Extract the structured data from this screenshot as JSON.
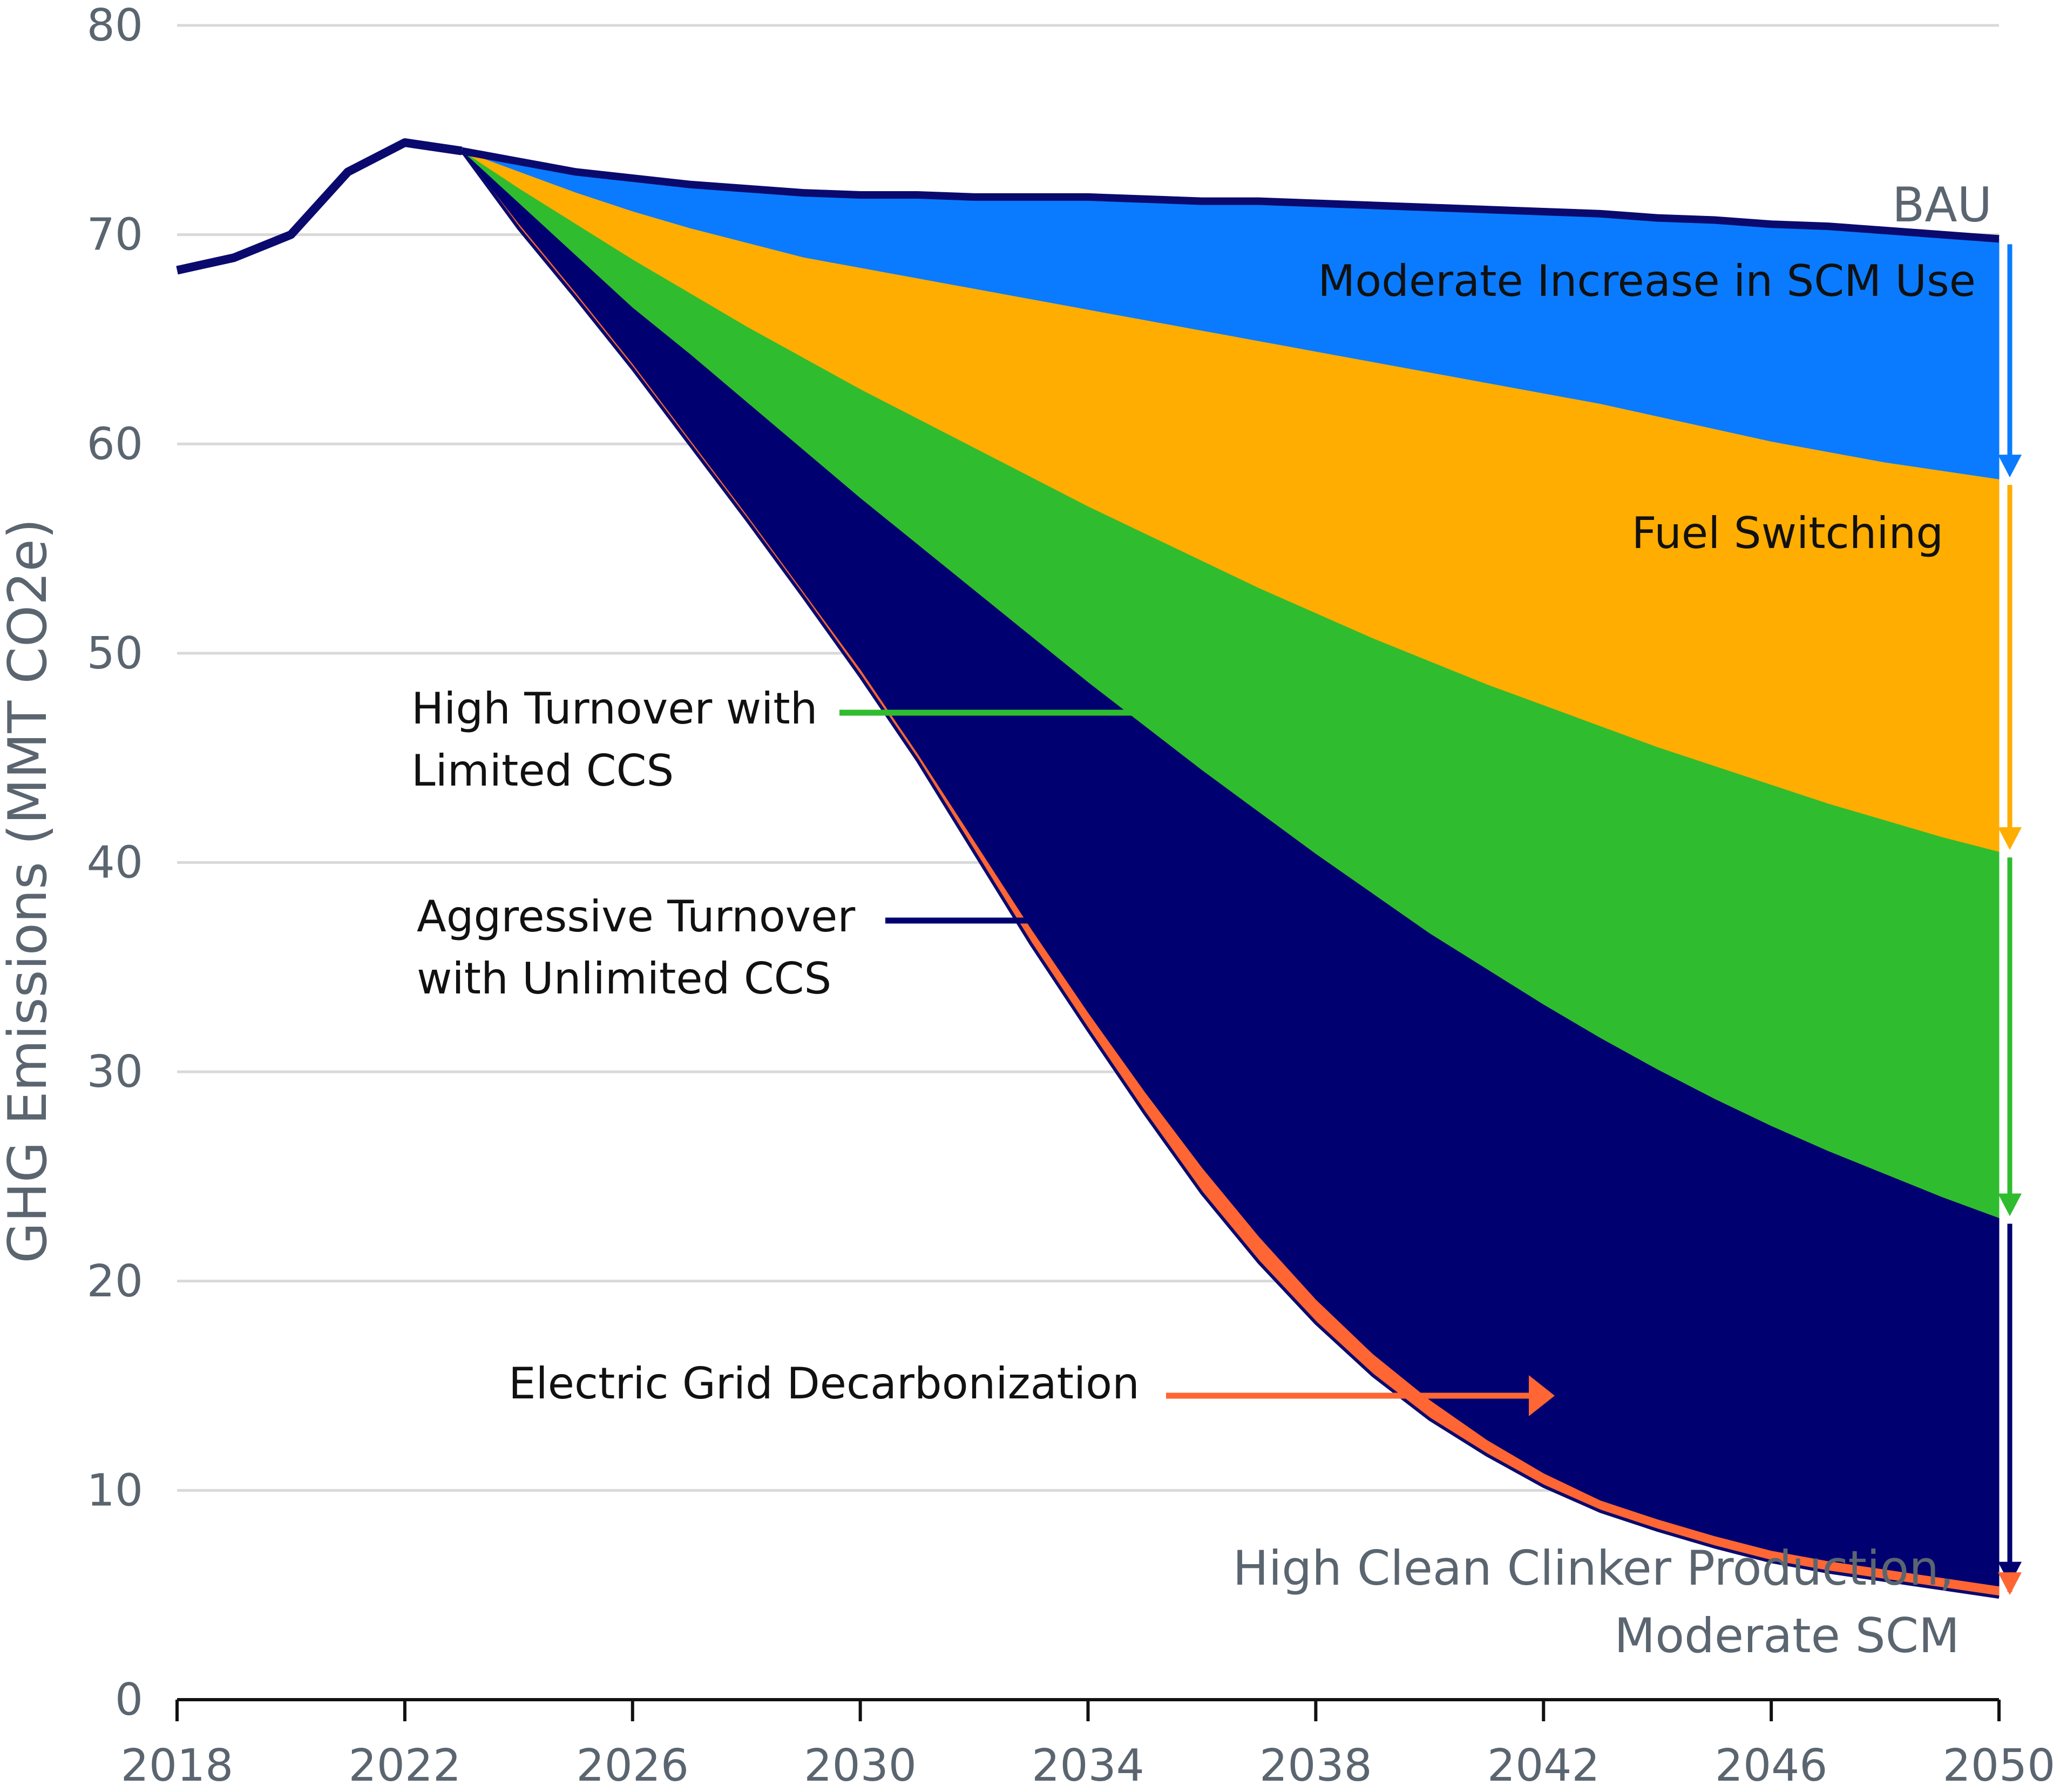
{
  "chart_data": {
    "type": "area",
    "ylabel": "GHG Emissions (MMT CO2e)",
    "xlabel": "",
    "xlim": [
      2018,
      2050
    ],
    "ylim": [
      0,
      80
    ],
    "xticks": [
      2018,
      2022,
      2026,
      2030,
      2034,
      2038,
      2042,
      2046,
      2050
    ],
    "yticks": [
      0,
      10,
      20,
      30,
      40,
      50,
      60,
      70,
      80
    ],
    "grid": "horizontal",
    "historical": {
      "x": [
        2018,
        2019,
        2020,
        2021,
        2022,
        2023
      ],
      "y": [
        68.3,
        68.9,
        70.0,
        73.0,
        74.4,
        74.0
      ]
    },
    "x": [
      2023,
      2024,
      2025,
      2026,
      2027,
      2028,
      2029,
      2030,
      2031,
      2032,
      2033,
      2034,
      2035,
      2036,
      2037,
      2038,
      2039,
      2040,
      2041,
      2042,
      2043,
      2044,
      2045,
      2046,
      2047,
      2048,
      2049,
      2050
    ],
    "series": [
      {
        "name": "BAU",
        "color": "#0a0a6e",
        "values": [
          74.0,
          73.5,
          73.0,
          72.7,
          72.4,
          72.2,
          72.0,
          71.9,
          71.9,
          71.8,
          71.8,
          71.8,
          71.7,
          71.6,
          71.6,
          71.5,
          71.4,
          71.3,
          71.2,
          71.1,
          71.0,
          70.8,
          70.7,
          70.5,
          70.4,
          70.2,
          70.0,
          69.8
        ]
      },
      {
        "name": "Moderate Increase in SCM Use",
        "color": "#0a7bff",
        "values": [
          74.0,
          73.0,
          72.0,
          71.1,
          70.3,
          69.6,
          68.9,
          68.4,
          67.9,
          67.4,
          66.9,
          66.4,
          65.9,
          65.4,
          64.9,
          64.4,
          63.9,
          63.4,
          62.9,
          62.4,
          61.9,
          61.3,
          60.7,
          60.1,
          59.6,
          59.1,
          58.7,
          58.3
        ]
      },
      {
        "name": "Fuel Switching",
        "color": "#ffad00",
        "values": [
          74.0,
          72.2,
          70.5,
          68.8,
          67.2,
          65.6,
          64.1,
          62.6,
          61.2,
          59.8,
          58.4,
          57.0,
          55.7,
          54.4,
          53.1,
          51.9,
          50.7,
          49.6,
          48.5,
          47.5,
          46.5,
          45.5,
          44.6,
          43.7,
          42.8,
          42.0,
          41.2,
          40.5
        ]
      },
      {
        "name": "High Turnover with Limited CCS",
        "color": "#30bc2f",
        "values": [
          74.0,
          71.5,
          69.0,
          66.5,
          64.3,
          62.0,
          59.7,
          57.4,
          55.2,
          53.0,
          50.8,
          48.6,
          46.5,
          44.4,
          42.4,
          40.4,
          38.5,
          36.6,
          34.9,
          33.2,
          31.6,
          30.1,
          28.7,
          27.4,
          26.2,
          25.1,
          24.0,
          23.0
        ]
      },
      {
        "name": "Aggressive Turnover with Unlimited CCS",
        "color": "#000070",
        "values": [
          74.0,
          70.5,
          67.2,
          63.8,
          60.2,
          56.6,
          52.9,
          49.2,
          45.2,
          41.0,
          36.8,
          32.8,
          29.0,
          25.4,
          22.1,
          19.1,
          16.5,
          14.3,
          12.4,
          10.8,
          9.5,
          8.6,
          7.8,
          7.1,
          6.6,
          6.2,
          5.8,
          5.4
        ]
      },
      {
        "name": "Electric Grid Decarbonization",
        "color": "#ff6633",
        "values": [
          74.0,
          70.3,
          67.0,
          63.6,
          60.0,
          56.4,
          52.7,
          48.9,
          44.9,
          40.5,
          36.1,
          32.0,
          28.0,
          24.2,
          20.9,
          18.0,
          15.5,
          13.4,
          11.7,
          10.2,
          9.0,
          8.1,
          7.3,
          6.6,
          6.1,
          5.7,
          5.3,
          4.9
        ]
      }
    ]
  },
  "annotations": {
    "bau": "BAU",
    "scm": "Moderate Increase in SCM Use",
    "fuel": "Fuel Switching",
    "high_turnover_1": "High Turnover with",
    "high_turnover_2": "Limited CCS",
    "aggressive_1": "Aggressive Turnover",
    "aggressive_2": "with Unlimited CCS",
    "grid": "Electric Grid Decarbonization",
    "result_1": "High Clean Clinker Production,",
    "result_2": "Moderate SCM"
  }
}
